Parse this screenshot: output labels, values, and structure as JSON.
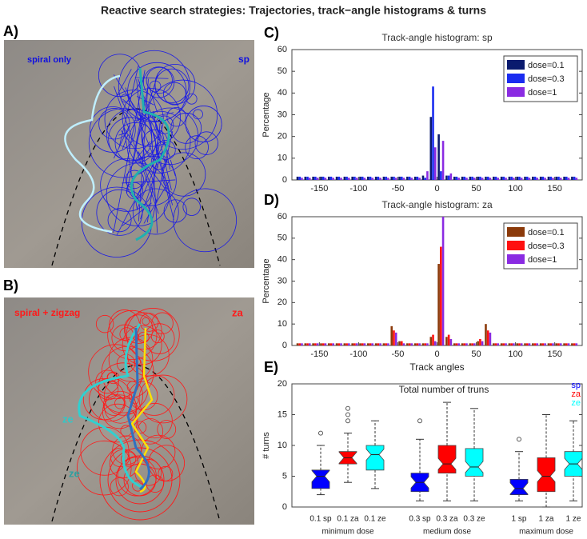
{
  "title": "Reactive search strategies: Trajectories, track−angle histograms & turns",
  "panel_a": {
    "label": "A)",
    "annotations": [
      "spiral only",
      "sp"
    ]
  },
  "panel_b": {
    "label": "B)",
    "annotations": [
      "spiral + zigzag",
      "za",
      "ze",
      "ze"
    ]
  },
  "chart_data": [
    {
      "type": "histogram",
      "panel_label": "C)",
      "title": "Track-angle histogram: sp",
      "ylabel": "Percentage",
      "bins": [
        -180,
        -170,
        -160,
        -150,
        -140,
        -130,
        -120,
        -110,
        -100,
        -90,
        -80,
        -70,
        -60,
        -50,
        -40,
        -30,
        -20,
        -10,
        0,
        10,
        20,
        30,
        40,
        50,
        60,
        70,
        80,
        90,
        100,
        110,
        120,
        130,
        140,
        150,
        160,
        170,
        180
      ],
      "series": [
        {
          "name": "dose=0.1",
          "color": "#0a1a6e",
          "values": [
            1.5,
            1.5,
            1.5,
            1.5,
            1.5,
            1.5,
            1.5,
            1.5,
            1.5,
            1.5,
            1.5,
            1.5,
            1.5,
            1.5,
            1.5,
            1.5,
            2,
            29,
            21,
            2,
            1.5,
            1.5,
            1.5,
            1.5,
            1.5,
            1.5,
            1.5,
            1.5,
            1.5,
            1.5,
            1.5,
            1.5,
            1.5,
            1.5,
            1.5,
            1.5
          ]
        },
        {
          "name": "dose=0.3",
          "color": "#1a2cf0",
          "values": [
            1.5,
            1.5,
            1.5,
            1.5,
            1.5,
            1.5,
            1.5,
            1.5,
            1.5,
            1.5,
            1.5,
            1.5,
            1.5,
            1.5,
            1.5,
            1.5,
            1,
            43,
            4,
            2,
            1.5,
            1.5,
            1.5,
            1.5,
            1.5,
            1.5,
            1.5,
            1.5,
            1.5,
            1.5,
            1.5,
            1.5,
            1.5,
            1.5,
            1.5,
            1.5
          ]
        },
        {
          "name": "dose=1",
          "color": "#8a2be2",
          "values": [
            1,
            1,
            1,
            1,
            1,
            1,
            1,
            1,
            1,
            1,
            1,
            1,
            1,
            1,
            1,
            1,
            4,
            15,
            18,
            3,
            1,
            1,
            1,
            1,
            1,
            1,
            1,
            1,
            1,
            1,
            1,
            1,
            1,
            1,
            1,
            1
          ]
        }
      ],
      "xlim": [
        -185,
        185
      ],
      "xticks": [
        -150,
        -100,
        -50,
        0,
        50,
        100,
        150
      ],
      "ylim": [
        0,
        60
      ],
      "yticks": [
        0,
        10,
        20,
        30,
        40,
        50,
        60
      ],
      "legend": "upper right"
    },
    {
      "type": "histogram",
      "panel_label": "D)",
      "title": "Track-angle histogram: za",
      "ylabel": "Percentage",
      "xlabel": "Track angles",
      "bins": [
        -180,
        -170,
        -160,
        -150,
        -140,
        -130,
        -120,
        -110,
        -100,
        -90,
        -80,
        -70,
        -60,
        -50,
        -40,
        -30,
        -20,
        -10,
        0,
        10,
        20,
        30,
        40,
        50,
        60,
        70,
        80,
        90,
        100,
        110,
        120,
        130,
        140,
        150,
        160,
        170,
        180
      ],
      "series": [
        {
          "name": "dose=0.1",
          "color": "#8b3a0a",
          "values": [
            1,
            1,
            1,
            1,
            1,
            1,
            1,
            1,
            1,
            1,
            1,
            1,
            9,
            2,
            1,
            1,
            1,
            4,
            38,
            4,
            1,
            1,
            1,
            2,
            10,
            1,
            1,
            1,
            1,
            1,
            1,
            1,
            1,
            1,
            1,
            1
          ]
        },
        {
          "name": "dose=0.3",
          "color": "#ff1010",
          "values": [
            1,
            1,
            1,
            1,
            1,
            1,
            1,
            1,
            1,
            1,
            1,
            1,
            7,
            2,
            1,
            1,
            1,
            5,
            46,
            5,
            1,
            1,
            1,
            3,
            7,
            1,
            1,
            1,
            1,
            1,
            1,
            1,
            1,
            1,
            1,
            1
          ]
        },
        {
          "name": "dose=1",
          "color": "#8a2be2",
          "values": [
            1,
            1,
            1,
            1,
            1,
            1,
            1,
            1,
            1,
            1,
            1,
            1,
            6,
            1,
            1,
            1,
            1,
            2,
            60,
            3,
            1,
            1,
            1,
            2,
            6,
            1,
            1,
            1,
            1,
            1,
            1,
            1,
            1,
            1,
            1,
            1
          ]
        }
      ],
      "xlim": [
        -185,
        185
      ],
      "xticks": [
        -150,
        -100,
        -50,
        0,
        50,
        100,
        150
      ],
      "ylim": [
        0,
        60
      ],
      "yticks": [
        0,
        10,
        20,
        30,
        40,
        50,
        60
      ],
      "legend": "upper right"
    },
    {
      "type": "box",
      "panel_label": "E)",
      "title": "Total number of truns",
      "ylabel": "# turns",
      "groups": [
        "minimum dose",
        "medium dose",
        "maximum dose"
      ],
      "series": [
        {
          "name": "sp",
          "color": "#0000ff",
          "labels": [
            "0.1 sp",
            "0.3 sp",
            "1 sp"
          ],
          "boxes": [
            {
              "whislo": 2,
              "q1": 3,
              "med": 5,
              "q3": 6,
              "whishi": 10,
              "fliers": [
                12
              ]
            },
            {
              "whislo": 1,
              "q1": 2.5,
              "med": 4,
              "q3": 5.5,
              "whishi": 11,
              "fliers": [
                14
              ]
            },
            {
              "whislo": 1,
              "q1": 2,
              "med": 3,
              "q3": 4.5,
              "whishi": 9,
              "fliers": [
                11
              ]
            }
          ]
        },
        {
          "name": "za",
          "color": "#ff0000",
          "labels": [
            "0.1 za",
            "0.3 za",
            "1 za"
          ],
          "boxes": [
            {
              "whislo": 4,
              "q1": 7,
              "med": 8,
              "q3": 9,
              "whishi": 12,
              "fliers": [
                14,
                15,
                16
              ]
            },
            {
              "whislo": 1,
              "q1": 5.5,
              "med": 7,
              "q3": 10,
              "whishi": 17,
              "fliers": []
            },
            {
              "whislo": 0,
              "q1": 2.5,
              "med": 5,
              "q3": 8,
              "whishi": 15,
              "fliers": []
            }
          ]
        },
        {
          "name": "ze",
          "color": "#00ffff",
          "labels": [
            "0.1 ze",
            "0.3 ze",
            "1 ze"
          ],
          "boxes": [
            {
              "whislo": 3,
              "q1": 6,
              "med": 8.5,
              "q3": 10,
              "whishi": 14,
              "fliers": []
            },
            {
              "whislo": 1,
              "q1": 5,
              "med": 6.5,
              "q3": 9.5,
              "whishi": 16,
              "fliers": []
            },
            {
              "whislo": 1,
              "q1": 5,
              "med": 7,
              "q3": 9,
              "whishi": 14,
              "fliers": []
            }
          ]
        }
      ],
      "ylim": [
        0,
        20
      ],
      "yticks": [
        0,
        5,
        10,
        15,
        20
      ],
      "legend": "upper right"
    }
  ]
}
